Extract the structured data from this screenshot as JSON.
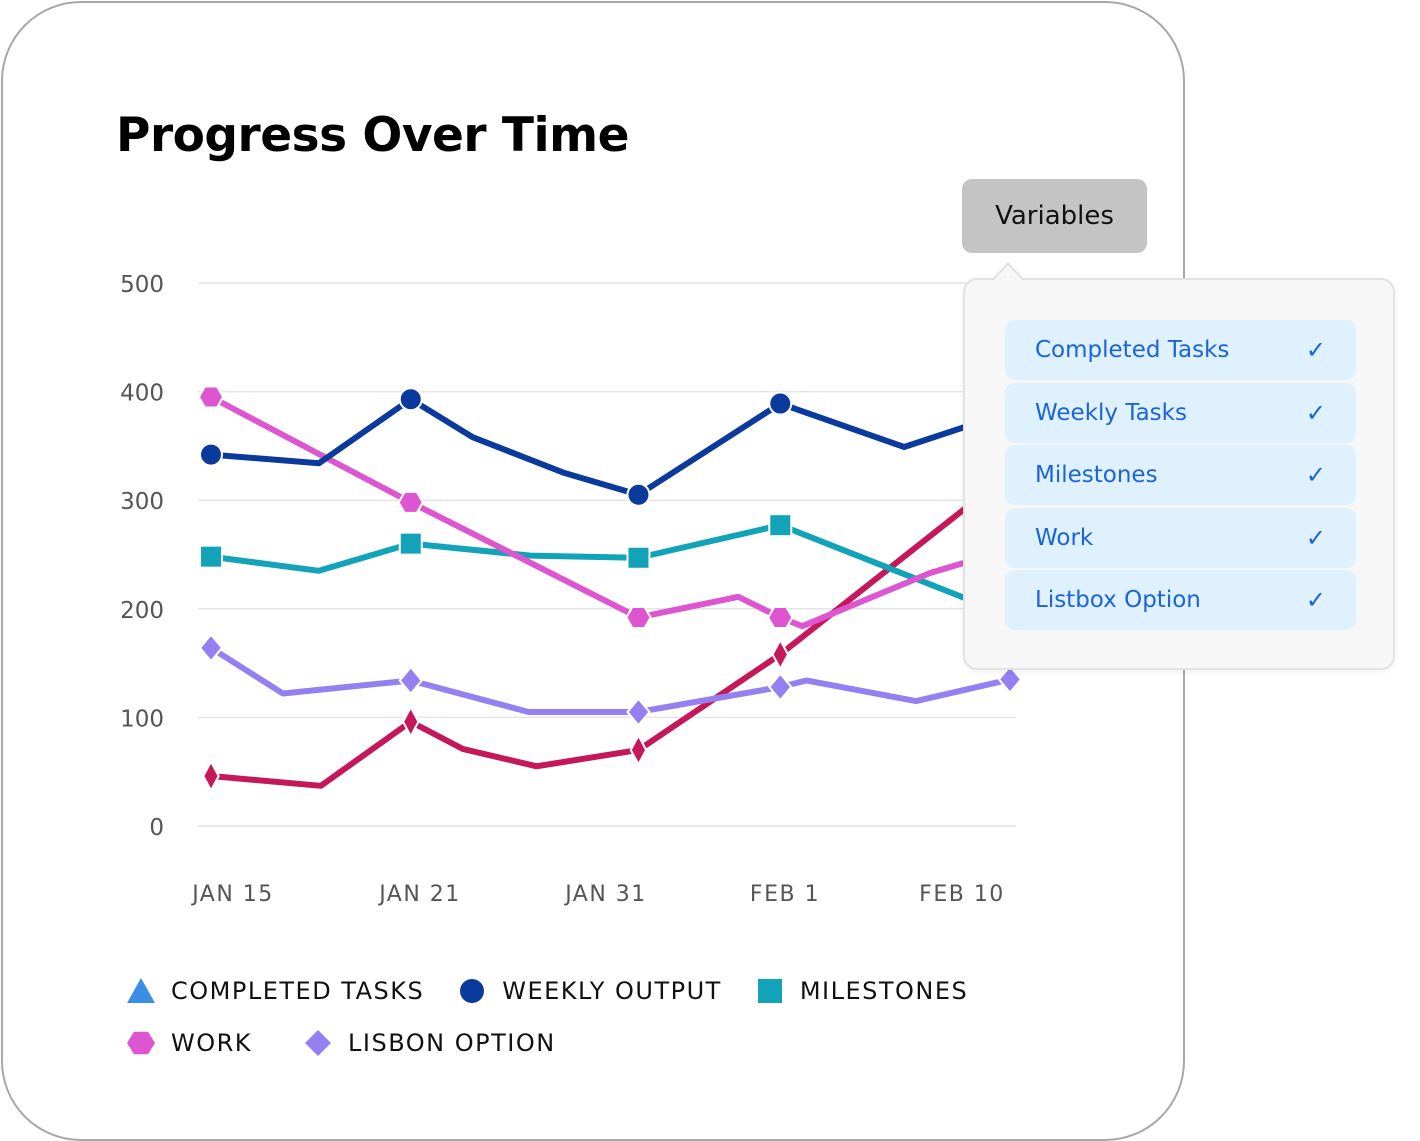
{
  "title": "Progress Over Time",
  "variables_button": "Variables",
  "variables_menu": [
    {
      "label": "Completed Tasks",
      "checked": true,
      "check": "✓"
    },
    {
      "label": "Weekly Tasks",
      "checked": true,
      "check": "✓"
    },
    {
      "label": "Milestones",
      "checked": true,
      "check": "✓"
    },
    {
      "label": "Work",
      "checked": true,
      "check": "✓"
    },
    {
      "label": "Listbox Option",
      "checked": true,
      "check": "✓"
    }
  ],
  "colors": {
    "menu_text": "#1a63d8",
    "menu_bg": "#dff0fe",
    "button_bg": "#c4c4c4"
  },
  "chart_data": {
    "type": "line",
    "title": "Progress Over Time",
    "x_categories": [
      "JAN 15",
      "JAN 21",
      "JAN 31",
      "FEB 1",
      "FEB 10"
    ],
    "ylim": [
      0,
      500
    ],
    "yticks": [
      0,
      100,
      200,
      300,
      400,
      500
    ],
    "grid": true,
    "legend_placement": "bottom",
    "legend": [
      {
        "name": "COMPLETED TASKS",
        "color": "#3a8ee6",
        "marker": "triangle"
      },
      {
        "name": "WEEKLY OUTPUT",
        "color": "#0a3a9b",
        "marker": "circle"
      },
      {
        "name": "MILESTONES",
        "color": "#12a3b8",
        "marker": "square"
      },
      {
        "name": "WORK",
        "color": "#dd55d0",
        "marker": "hexagon"
      },
      {
        "name": "LISBON OPTION",
        "color": "#9480f0",
        "marker": "diamond"
      }
    ],
    "series": [
      {
        "color": "#c4185a",
        "marker": "thin-diamond",
        "points": [
          [
            0,
            46,
            1
          ],
          [
            0.55,
            37,
            0
          ],
          [
            1.0,
            96,
            1
          ],
          [
            1.26,
            71,
            0
          ],
          [
            1.63,
            55,
            0
          ],
          [
            2.14,
            70,
            1
          ],
          [
            2.85,
            158,
            1
          ],
          [
            3.8,
            296,
            0
          ]
        ]
      },
      {
        "name": "LISBON OPTION",
        "color": "#9480f0",
        "marker": "diamond",
        "points": [
          [
            0,
            164,
            1
          ],
          [
            0.36,
            122,
            0
          ],
          [
            1.0,
            134,
            1
          ],
          [
            1.59,
            105,
            0
          ],
          [
            2.14,
            105,
            1
          ],
          [
            2.85,
            128,
            1
          ],
          [
            2.98,
            134,
            0
          ],
          [
            3.53,
            115,
            0
          ],
          [
            4.0,
            135,
            1
          ]
        ]
      },
      {
        "name": "MILESTONES",
        "color": "#12a3b8",
        "marker": "square",
        "points": [
          [
            0,
            248,
            1
          ],
          [
            0.54,
            235,
            0
          ],
          [
            1.0,
            260,
            1
          ],
          [
            1.6,
            249,
            0
          ],
          [
            2.14,
            247,
            1
          ],
          [
            2.85,
            277,
            1
          ],
          [
            3.8,
            208,
            0
          ]
        ]
      },
      {
        "name": "WORK",
        "color": "#dd55d0",
        "marker": "hexagon",
        "points": [
          [
            0,
            395,
            1
          ],
          [
            1.0,
            298,
            1
          ],
          [
            2.14,
            192,
            1
          ],
          [
            2.64,
            211,
            0
          ],
          [
            2.85,
            192,
            1
          ],
          [
            2.96,
            184,
            0
          ],
          [
            3.6,
            233,
            0
          ],
          [
            3.82,
            245,
            0
          ]
        ]
      },
      {
        "name": "WEEKLY OUTPUT",
        "color": "#0a3a9b",
        "marker": "circle",
        "points": [
          [
            0,
            342,
            1
          ],
          [
            0.54,
            334,
            0
          ],
          [
            1.0,
            393,
            1
          ],
          [
            1.31,
            358,
            0
          ],
          [
            1.77,
            325,
            0
          ],
          [
            2.14,
            305,
            1
          ],
          [
            2.85,
            389,
            1
          ],
          [
            3.47,
            349,
            0
          ],
          [
            3.8,
            369,
            0
          ]
        ]
      }
    ]
  }
}
